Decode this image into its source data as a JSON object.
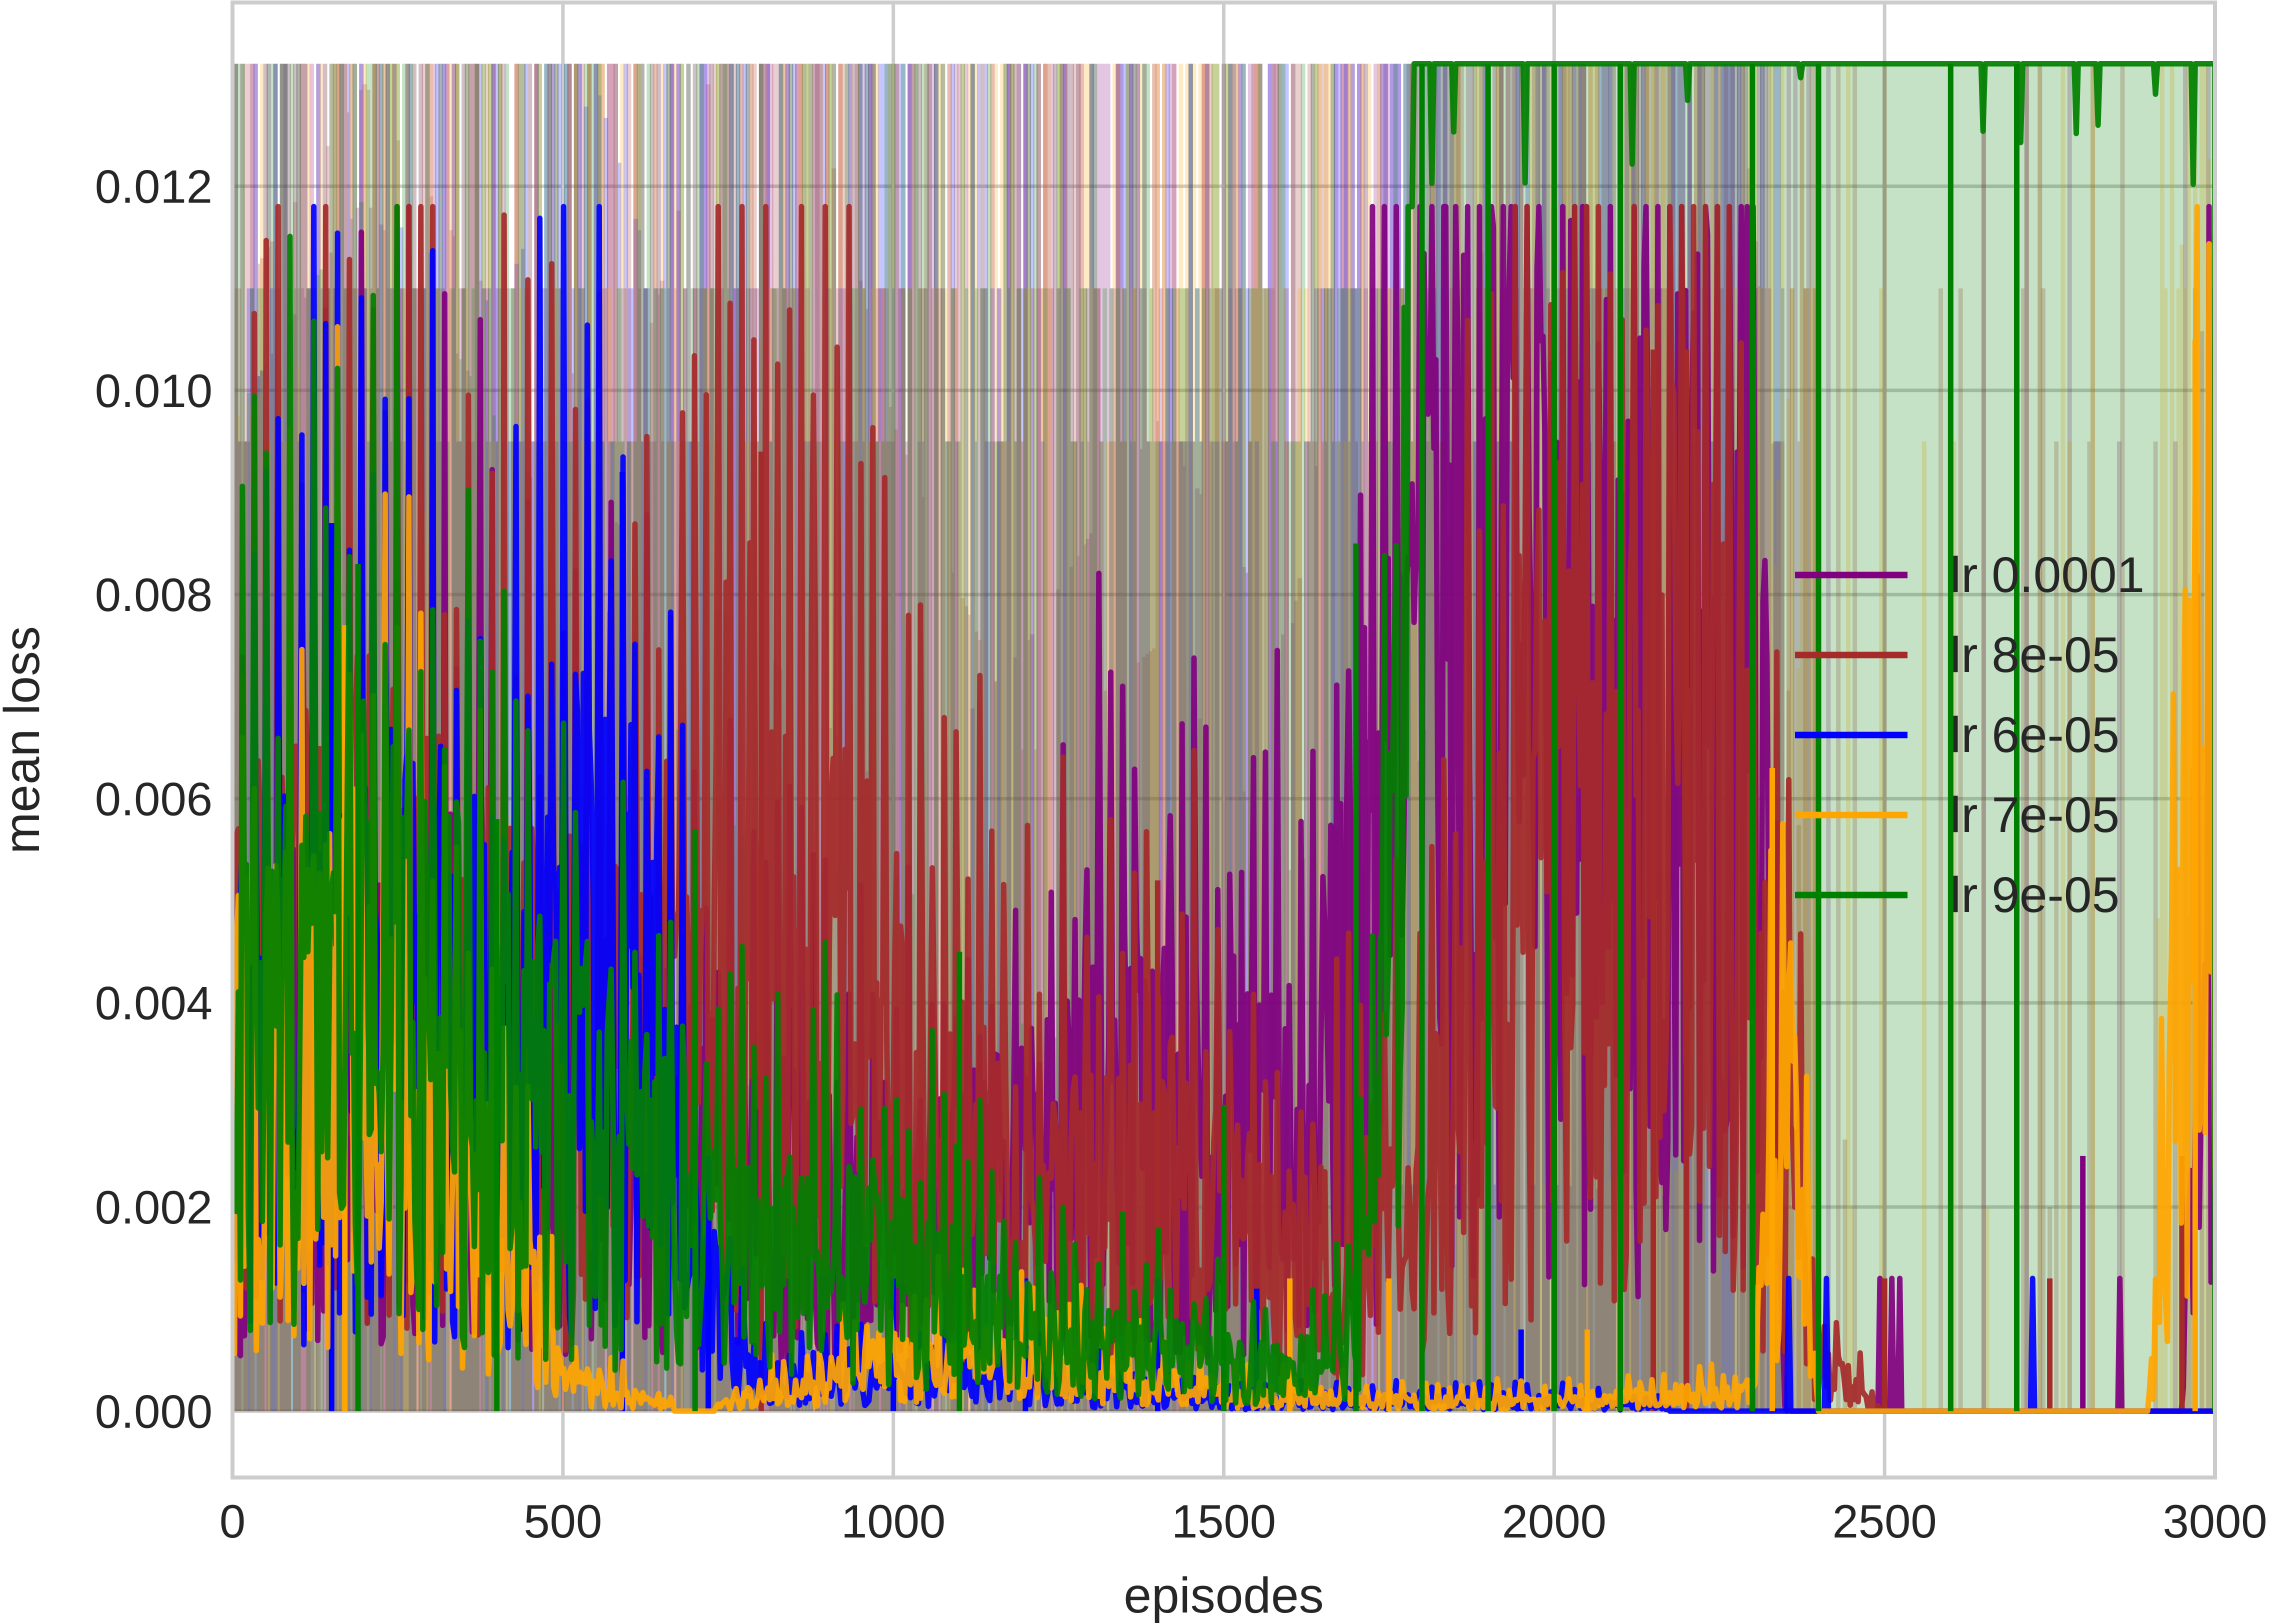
{
  "chart_data": {
    "type": "line",
    "title": "",
    "xlabel": "episodes",
    "ylabel": "mean loss",
    "xlim": [
      0,
      3000
    ],
    "ylim": [
      -0.00065,
      0.0138
    ],
    "x_ticks": [
      0,
      500,
      1000,
      1500,
      2000,
      2500,
      3000
    ],
    "x_tick_labels": [
      "0",
      "500",
      "1000",
      "1500",
      "2000",
      "2500",
      "3000"
    ],
    "y_ticks": [
      0.0,
      0.002,
      0.004,
      0.006,
      0.008,
      0.01,
      0.012
    ],
    "y_tick_labels": [
      "0.000",
      "0.002",
      "0.004",
      "0.006",
      "0.008",
      "0.010",
      "0.012"
    ],
    "grid": true,
    "legend_position": "center-right",
    "shaded_band": "min-max range per series (translucent)",
    "series": [
      {
        "name": "lr 0.0001",
        "color": "#800080",
        "active_until": 3000,
        "peak_episodes": [
          1700,
          1800,
          1900,
          2000,
          2100,
          2200,
          2300,
          2800,
          2950,
          3000
        ],
        "peak_values": [
          0.0045,
          0.0107,
          0.0093,
          0.0098,
          0.0085,
          0.0095,
          0.0104,
          0.0025,
          0.0024,
          0.0103
        ],
        "points": [
          [
            0,
            0.0035
          ],
          [
            200,
            0.0045
          ],
          [
            400,
            0.0035
          ],
          [
            600,
            0.003
          ],
          [
            800,
            0.0025
          ],
          [
            1000,
            0.0018
          ],
          [
            1200,
            0.0025
          ],
          [
            1400,
            0.0035
          ],
          [
            1600,
            0.0025
          ],
          [
            1700,
            0.0045
          ],
          [
            1800,
            0.008
          ],
          [
            1900,
            0.0075
          ],
          [
            2000,
            0.0085
          ],
          [
            2100,
            0.007
          ],
          [
            2200,
            0.008
          ],
          [
            2300,
            0.0085
          ],
          [
            2350,
            0.0
          ],
          [
            2800,
            0.0
          ],
          [
            2950,
            0.0
          ],
          [
            3000,
            0.0065
          ]
        ]
      },
      {
        "name": "lr 8e-05",
        "color": "#a52a2a",
        "active_until": 3000,
        "peak_episodes": [
          800,
          1400,
          2000,
          2150,
          2200,
          2500,
          2750,
          2950
        ],
        "peak_values": [
          0.0094,
          0.0052,
          0.0118,
          0.0104,
          0.0104,
          0.0013,
          0.0013,
          0.0025
        ],
        "points": [
          [
            0,
            0.004
          ],
          [
            200,
            0.005
          ],
          [
            400,
            0.004
          ],
          [
            600,
            0.0035
          ],
          [
            800,
            0.006
          ],
          [
            1000,
            0.0035
          ],
          [
            1200,
            0.002
          ],
          [
            1400,
            0.0025
          ],
          [
            1600,
            0.0015
          ],
          [
            1800,
            0.002
          ],
          [
            1900,
            0.0045
          ],
          [
            2000,
            0.0065
          ],
          [
            2100,
            0.0055
          ],
          [
            2200,
            0.007
          ],
          [
            2300,
            0.0045
          ],
          [
            2400,
            0.0005
          ],
          [
            2500,
            0.0
          ],
          [
            3000,
            0.0
          ]
        ]
      },
      {
        "name": "lr 6e-05",
        "color": "#0000ff",
        "active_until": 2350,
        "peak_episodes": [
          150,
          590,
          720,
          1000,
          1200,
          1400,
          1550,
          1950,
          2050,
          2300
        ],
        "peak_values": [
          0.0087,
          0.0092,
          0.0025,
          0.0013,
          0.0013,
          0.0013,
          0.0012,
          0.0008,
          0.0008,
          0.0013
        ],
        "points": [
          [
            0,
            0.0035
          ],
          [
            200,
            0.0045
          ],
          [
            400,
            0.004
          ],
          [
            550,
            0.005
          ],
          [
            650,
            0.004
          ],
          [
            700,
            0.0015
          ],
          [
            800,
            0.0003
          ],
          [
            1000,
            0.0003
          ],
          [
            1200,
            0.0003
          ],
          [
            1500,
            0.0001
          ],
          [
            2000,
            0.0001
          ],
          [
            2350,
            0.0
          ],
          [
            3000,
            0.0
          ]
        ]
      },
      {
        "name": "lr 7e-05",
        "color": "#ffa500",
        "active_until": 3000,
        "peak_episodes": [
          170,
          400,
          1100,
          1600,
          1750,
          2050,
          2330,
          2970
        ],
        "peak_values": [
          0.0077,
          0.005,
          0.0015,
          0.0013,
          0.0013,
          0.0008,
          0.0063,
          0.0105
        ],
        "points": [
          [
            0,
            0.0035
          ],
          [
            200,
            0.004
          ],
          [
            400,
            0.002
          ],
          [
            500,
            0.0003
          ],
          [
            700,
            0.0
          ],
          [
            1000,
            0.0005
          ],
          [
            1200,
            0.0005
          ],
          [
            1500,
            0.0002
          ],
          [
            1800,
            0.0001
          ],
          [
            2000,
            0.0001
          ],
          [
            2300,
            0.0002
          ],
          [
            2350,
            0.004
          ],
          [
            2400,
            0.0
          ],
          [
            2900,
            0.0
          ],
          [
            2970,
            0.006
          ],
          [
            3000,
            0.004
          ]
        ]
      },
      {
        "name": "lr 9e-05",
        "color": "#008000",
        "active_until": 3000,
        "peak_episodes": [
          190,
          400,
          700,
          1100,
          1500,
          1700,
          1800,
          1900,
          2000,
          2100,
          2300,
          2400,
          2600,
          2700,
          3000
        ],
        "peak_values": [
          0.0083,
          0.0058,
          0.0057,
          0.0045,
          0.003,
          0.0085,
          0.0132,
          0.0132,
          0.0132,
          0.0132,
          0.0132,
          0.0132,
          0.0132,
          0.0132,
          0.0132
        ],
        "points": [
          [
            0,
            0.0035
          ],
          [
            200,
            0.0045
          ],
          [
            400,
            0.0035
          ],
          [
            600,
            0.0025
          ],
          [
            800,
            0.0015
          ],
          [
            1000,
            0.0015
          ],
          [
            1200,
            0.0008
          ],
          [
            1400,
            0.0006
          ],
          [
            1600,
            0.0004
          ],
          [
            1700,
            0.0008
          ],
          [
            1760,
            0.005
          ],
          [
            1790,
            0.0132
          ],
          [
            1900,
            0.0125
          ],
          [
            2000,
            0.0128
          ],
          [
            2100,
            0.013
          ],
          [
            2200,
            0.0132
          ],
          [
            2300,
            0.0131
          ],
          [
            2400,
            0.0127
          ],
          [
            2500,
            0.0132
          ],
          [
            2620,
            0.0127
          ],
          [
            2700,
            0.0132
          ],
          [
            3000,
            0.0132
          ]
        ]
      }
    ]
  }
}
